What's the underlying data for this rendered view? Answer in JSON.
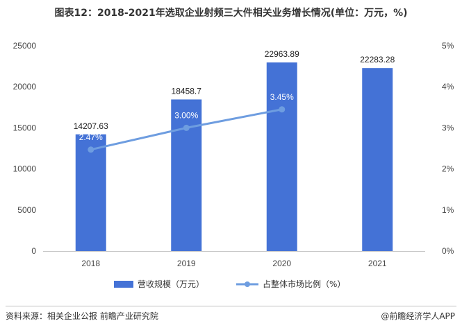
{
  "title": "图表12：2018-2021年选取企业射频三大件相关业务增长情况(单位：万元，%)",
  "source": "资料来源：相关企业公报 前瞻产业研究院",
  "brand": "@前瞻经济学人APP",
  "colors": {
    "bar": "#4472d6",
    "line": "#6e9de0",
    "axis": "#bfbfbf"
  },
  "chart_data": {
    "type": "bar",
    "categories": [
      "2018",
      "2019",
      "2020",
      "2021"
    ],
    "series": [
      {
        "name": "营收规模（万元）",
        "kind": "bar",
        "axis": "left",
        "values": [
          14207.63,
          18458.7,
          22963.89,
          22283.28
        ],
        "labels": [
          "14207.63",
          "18458.7",
          "22963.89",
          "22283.28"
        ]
      },
      {
        "name": "占整体市场比例（%）",
        "kind": "line",
        "axis": "right",
        "values": [
          2.47,
          3.0,
          3.45,
          null
        ],
        "labels": [
          "2.47%",
          "3.00%",
          "3.45%",
          ""
        ]
      }
    ],
    "y_left": {
      "min": 0,
      "max": 25000,
      "ticks": [
        "0",
        "5000",
        "10000",
        "15000",
        "20000",
        "25000"
      ]
    },
    "y_right": {
      "min": 0,
      "max": 5,
      "ticks": [
        "0%",
        "1%",
        "2%",
        "3%",
        "4%",
        "5%"
      ]
    },
    "grid": false,
    "legend_position": "bottom"
  }
}
